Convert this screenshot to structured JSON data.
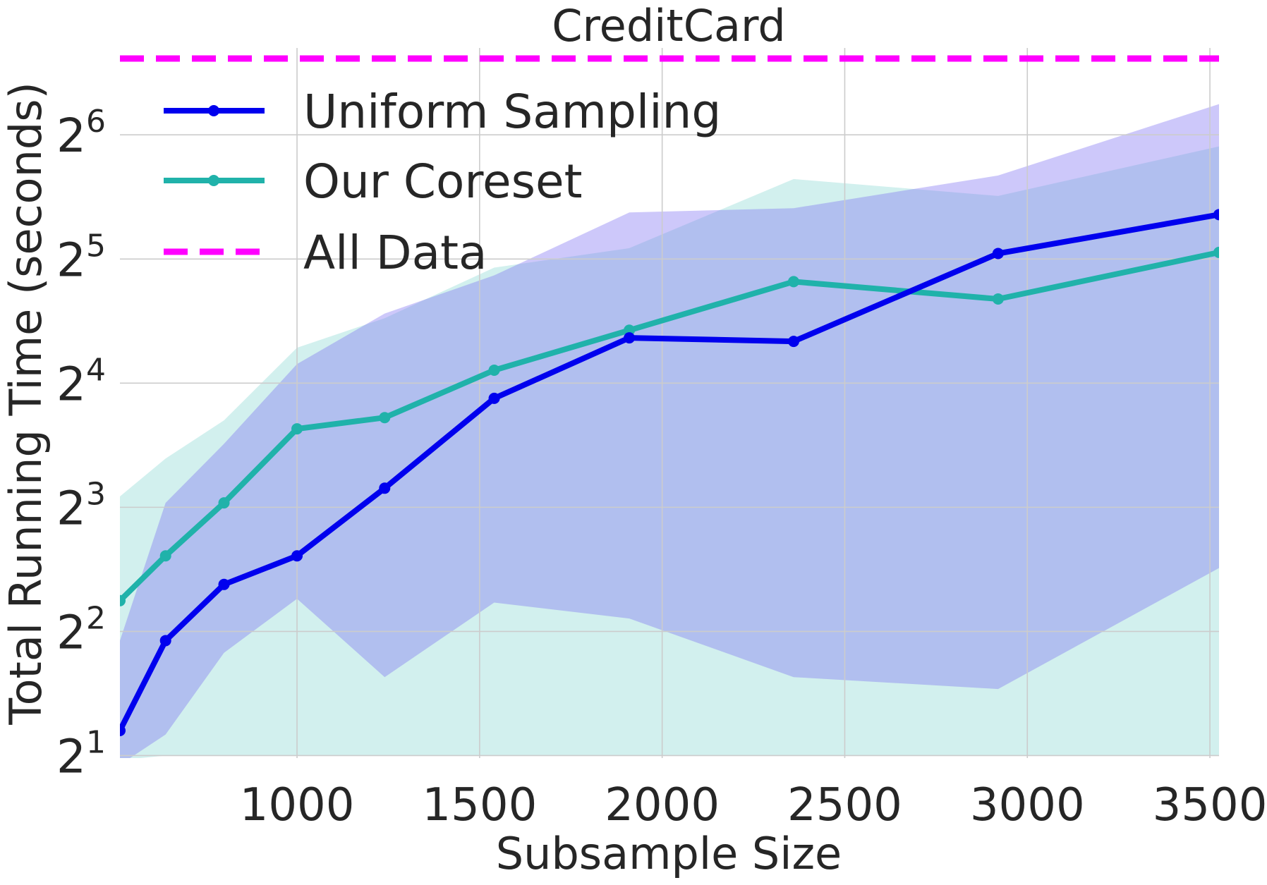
{
  "chart_data": {
    "type": "line",
    "title": "CreditCard",
    "xlabel": "Subsample Size",
    "ylabel": "Total Running Time (seconds)",
    "xlim": [
      515,
      3525
    ],
    "ylim_log2": [
      0.98,
      6.7
    ],
    "y_scale": "log2",
    "grid": true,
    "legend_position": "top-left",
    "xticks": [
      1000,
      1500,
      2000,
      2500,
      3000,
      3500
    ],
    "xtick_labels": [
      "1000",
      "1500",
      "2000",
      "2500",
      "3000",
      "3500"
    ],
    "yticks_exp": [
      1,
      2,
      3,
      4,
      5,
      6
    ],
    "ytick_base": "2",
    "ytick_exponents": [
      "1",
      "2",
      "3",
      "4",
      "5",
      "6"
    ],
    "colors": {
      "background": "#ffffff",
      "grid": "#cccccc",
      "uniform": "#0000ee",
      "coreset": "#20b2aa",
      "all_data": "#ff00ff",
      "uniform_band": "#7b6ff2",
      "coreset_band": "#20b2aa"
    },
    "series": [
      {
        "name": "Uniform Sampling",
        "color": "#0000ee",
        "x": [
          515,
          640,
          800,
          1000,
          1240,
          1540,
          1910,
          2360,
          2920,
          3525
        ],
        "y": [
          2.3,
          3.8,
          5.2,
          6.1,
          8.9,
          14.7,
          20.6,
          20.2,
          33.0,
          41.0
        ],
        "band_low": [
          1.9,
          2.25,
          3.55,
          4.8,
          3.1,
          4.7,
          4.3,
          3.1,
          2.9,
          5.7
        ],
        "band_high": [
          3.8,
          8.2,
          11.4,
          17.8,
          23.6,
          29.2,
          41.5,
          42.5,
          51.0,
          76.0
        ]
      },
      {
        "name": "Our Coreset",
        "color": "#20b2aa",
        "x": [
          515,
          640,
          800,
          1000,
          1240,
          1540,
          1910,
          2360,
          2920,
          3525
        ],
        "y": [
          4.75,
          6.1,
          8.2,
          12.4,
          13.2,
          17.2,
          21.5,
          28.2,
          25.6,
          33.2
        ],
        "band_low": [
          1.95,
          2.0,
          2.0,
          2.0,
          2.0,
          2.0,
          2.0,
          2.0,
          2.0,
          2.0
        ],
        "band_high": [
          8.5,
          10.5,
          13.0,
          19.5,
          23.0,
          30.5,
          34.0,
          50.0,
          45.5,
          60.0
        ]
      },
      {
        "name": "All Data",
        "color": "#ff00ff",
        "style": "dashed",
        "y_constant": 98.0
      }
    ]
  }
}
